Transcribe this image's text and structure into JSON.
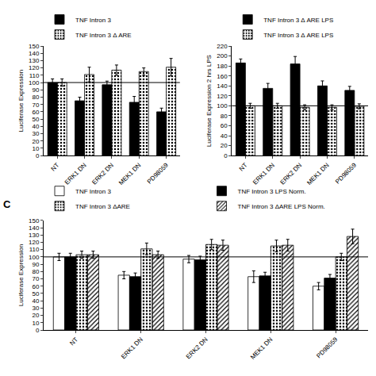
{
  "chart_data": [
    {
      "type": "bar",
      "categories": [
        "NT",
        "ERK1 DN",
        "ERK2 DN",
        "MEK1 DN",
        "PD98059"
      ],
      "series": [
        {
          "name": "TNF Intron 3",
          "color": "#000000",
          "marker": "solid",
          "values": [
            100,
            75,
            97,
            73,
            60
          ],
          "errors": [
            5,
            5,
            5,
            8,
            5
          ]
        },
        {
          "name": "TNF Intron 3 Δ ARE",
          "color": "#c8c8c8",
          "marker": "dots",
          "values": [
            100,
            111,
            117,
            115,
            121
          ],
          "errors": [
            5,
            10,
            7,
            5,
            12
          ]
        }
      ],
      "ylabel": "Luciferase Expression",
      "ylim": [
        0,
        150
      ],
      "yticks": [
        0,
        10,
        20,
        30,
        40,
        50,
        60,
        70,
        80,
        90,
        100,
        110,
        120,
        130,
        140,
        150
      ],
      "hline": 100,
      "grid": false,
      "legend": "upper left"
    },
    {
      "type": "bar",
      "categories": [
        "NT",
        "ERK1 DN",
        "ERK2 DN",
        "MEK1 DN",
        "PD98059"
      ],
      "series": [
        {
          "name": "TNF Intron 3 Δ ARE LPS",
          "color": "#000000",
          "marker": "solid",
          "values": [
            186,
            135,
            184,
            140,
            131
          ],
          "errors": [
            8,
            10,
            15,
            10,
            8
          ]
        },
        {
          "name": "TNF Intron 3 Δ ARE LPS",
          "color": "#c8c8c8",
          "marker": "dots",
          "values": [
            100,
            100,
            97,
            97,
            99
          ],
          "errors": [
            5,
            5,
            5,
            5,
            5
          ]
        }
      ],
      "ylabel": "Luciferase Expression 2 hrs LPS",
      "ylim": [
        0,
        220
      ],
      "yticks": [
        0,
        20,
        40,
        60,
        80,
        100,
        120,
        140,
        160,
        180,
        200,
        220
      ],
      "hline": 100,
      "grid": false,
      "legend": "upper left"
    },
    {
      "type": "bar",
      "categories": [
        "NT",
        "ERK1 DN",
        "ERK2 DN",
        "MEK1 DN",
        "PD98059"
      ],
      "series": [
        {
          "name": "TNF Intron 3",
          "color": "#ffffff",
          "marker": "solid",
          "values": [
            100,
            75,
            97,
            73,
            60
          ],
          "errors": [
            5,
            5,
            5,
            8,
            5
          ]
        },
        {
          "name": "TNF Intron 3 LPS Norm.",
          "color": "#000000",
          "marker": "solid",
          "values": [
            100,
            73,
            96,
            74,
            71
          ],
          "errors": [
            5,
            5,
            5,
            5,
            5
          ]
        },
        {
          "name": "TNF Intron 3 ΔARE",
          "color": "#c8c8c8",
          "marker": "dots",
          "values": [
            103,
            111,
            117,
            115,
            100
          ],
          "errors": [
            5,
            8,
            7,
            8,
            5
          ]
        },
        {
          "name": "TNF Intron 3 ΔARE LPS Norm.",
          "color": "#a0a0a0",
          "marker": "diagonal",
          "values": [
            103,
            103,
            116,
            116,
            128
          ],
          "errors": [
            5,
            5,
            7,
            8,
            10
          ]
        }
      ],
      "ylabel": "Luciferase Expression",
      "ylim": [
        0,
        150
      ],
      "yticks": [
        0,
        10,
        20,
        30,
        40,
        50,
        60,
        70,
        80,
        90,
        100,
        110,
        120,
        130,
        140,
        150
      ],
      "hline": 100,
      "grid": false,
      "legend": "upper left",
      "annotations": [
        "C"
      ]
    }
  ]
}
